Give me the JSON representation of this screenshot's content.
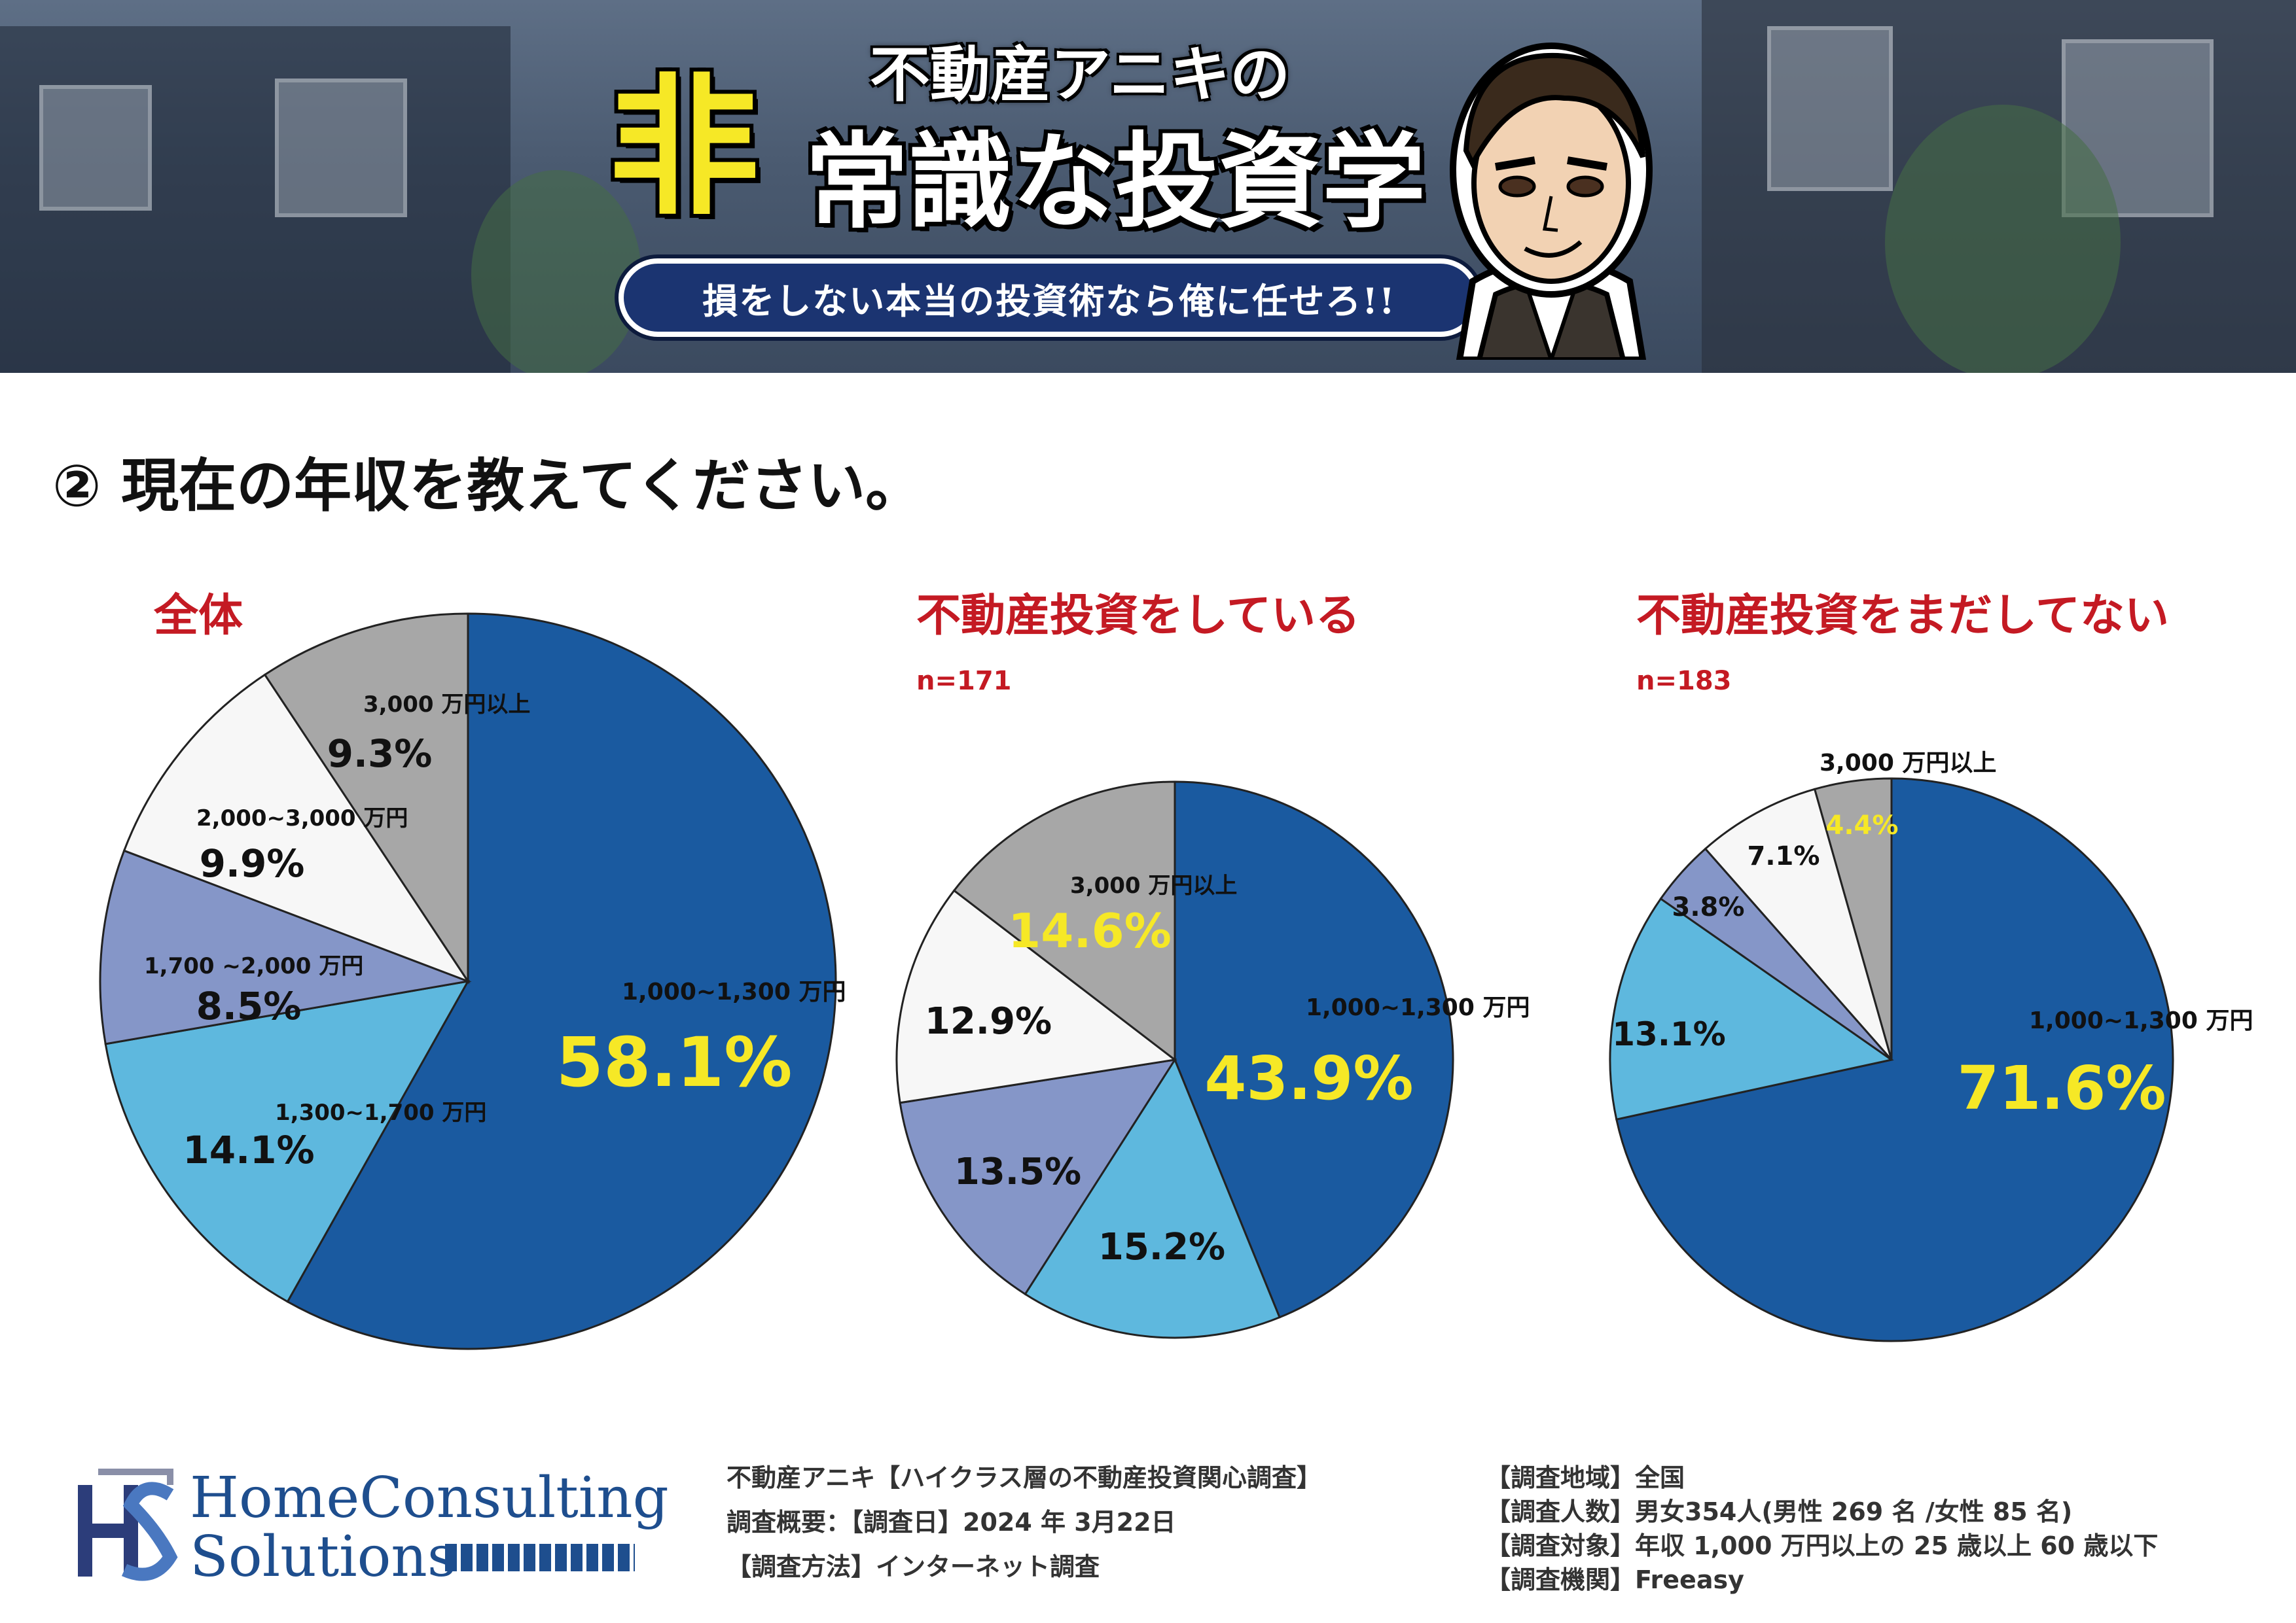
{
  "banner": {
    "series_title": "不動産アニキの",
    "title_hi": "非",
    "title_main": "常識な投資学",
    "tagline": "損をしない本当の投資術なら俺に任せろ!!"
  },
  "question": "② 現在の年収を教えてください。",
  "charts": [
    {
      "title": "全体",
      "n": ""
    },
    {
      "title": "不動産投資をしている",
      "n": "n=171"
    },
    {
      "title": "不動産投資をまだしてない",
      "n": "n=183"
    }
  ],
  "chart_data": [
    {
      "type": "pie",
      "title": "全体",
      "slices": [
        {
          "label": "1,000~1,300 万円",
          "value": 58.1,
          "display": "58.1%",
          "color": "#1a5aa0"
        },
        {
          "label": "1,300~1,700 万円",
          "value": 14.1,
          "display": "14.1%",
          "color": "#5eb8de"
        },
        {
          "label": "1,700 ~2,000 万円",
          "value": 8.5,
          "display": "8.5%",
          "color": "#8596c8"
        },
        {
          "label": "2,000~3,000 万円",
          "value": 9.9,
          "display": "9.9%",
          "color": "#f7f7f7"
        },
        {
          "label": "3,000 万円以上",
          "value": 9.3,
          "display": "9.3%",
          "color": "#a7a7a7"
        }
      ]
    },
    {
      "type": "pie",
      "title": "不動産投資をしている",
      "n": "n=171",
      "slices": [
        {
          "label": "1,000~1,300 万円",
          "value": 43.9,
          "display": "43.9%",
          "color": "#1a5aa0"
        },
        {
          "label": "",
          "value": 15.2,
          "display": "15.2%",
          "color": "#5eb8de"
        },
        {
          "label": "",
          "value": 13.5,
          "display": "13.5%",
          "color": "#8596c8"
        },
        {
          "label": "",
          "value": 12.9,
          "display": "12.9%",
          "color": "#f7f7f7"
        },
        {
          "label": "3,000 万円以上",
          "value": 14.6,
          "display": "14.6%",
          "color": "#a7a7a7"
        }
      ]
    },
    {
      "type": "pie",
      "title": "不動産投資をまだしてない",
      "n": "n=183",
      "slices": [
        {
          "label": "1,000~1,300 万円",
          "value": 71.6,
          "display": "71.6%",
          "color": "#1a5aa0"
        },
        {
          "label": "",
          "value": 13.1,
          "display": "13.1%",
          "color": "#5eb8de"
        },
        {
          "label": "",
          "value": 3.8,
          "display": "3.8%",
          "color": "#8596c8"
        },
        {
          "label": "",
          "value": 7.1,
          "display": "7.1%",
          "color": "#f7f7f7"
        },
        {
          "label": "3,000 万円以上",
          "value": 4.4,
          "display": "4.4%",
          "color": "#a7a7a7"
        }
      ]
    }
  ],
  "colors": {
    "accent_red": "#c41a23",
    "highlight_yellow": "#f6e826"
  },
  "logo": {
    "line1": "HomeConsulting",
    "line2": "Solutions"
  },
  "survey": {
    "left": [
      "不動産アニキ【ハイクラス層の不動産投資関心調査】",
      "調査概要：【調査日】2024 年 3月22日",
      "【調査方法】インターネット調査"
    ],
    "right": [
      "【調査地域】全国",
      "【調査人数】男女354人(男性 269 名 /女性 85 名)",
      "【調査対象】年収 1,000 万円以上の 25 歳以上 60 歳以下",
      "【調査機関】Freeasy"
    ]
  }
}
